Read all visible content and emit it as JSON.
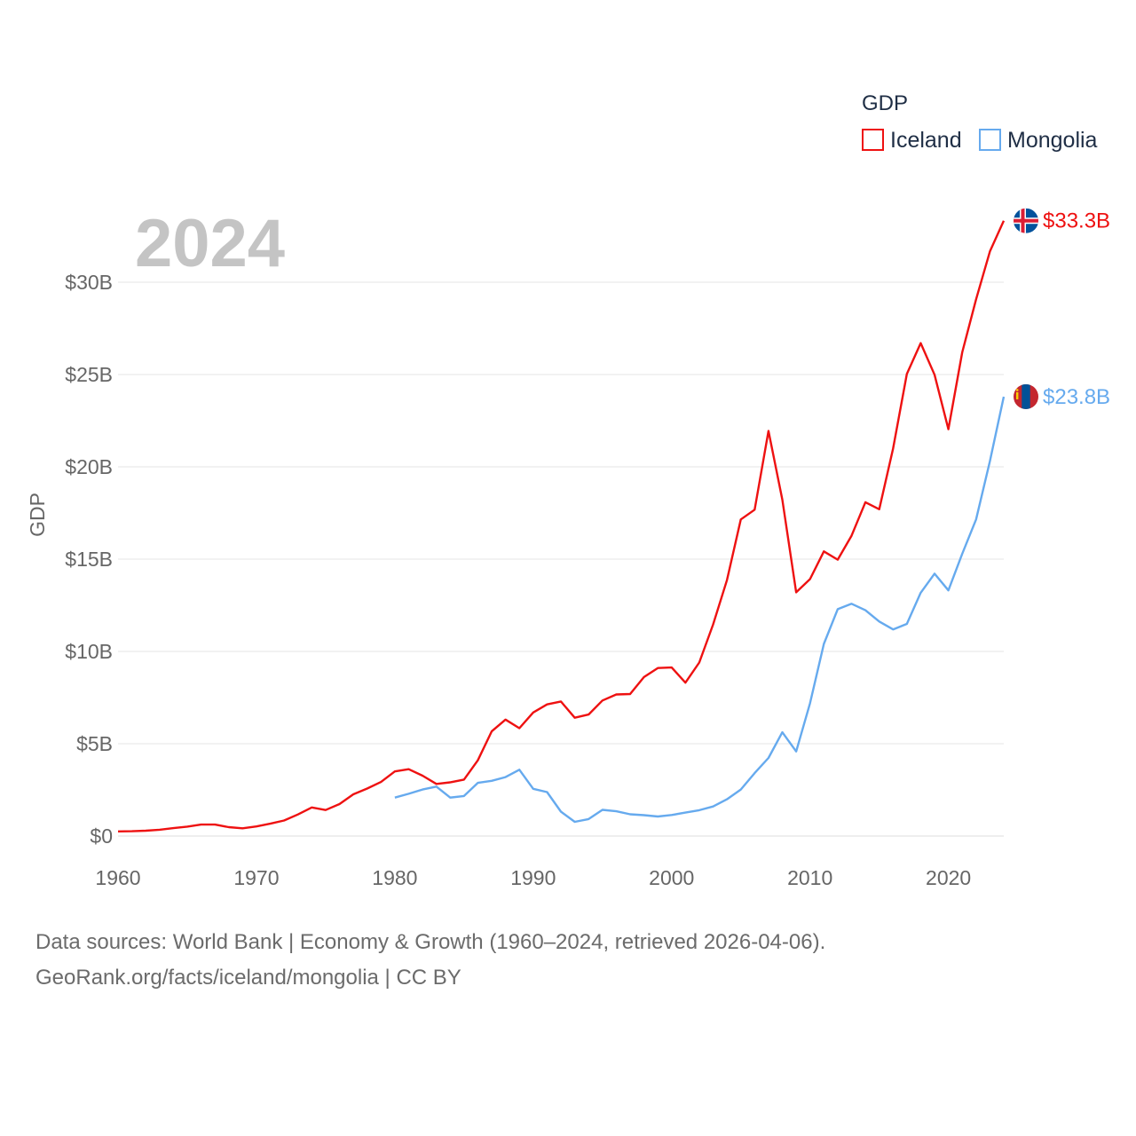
{
  "colors": {
    "iceland": "#ee1111",
    "mongolia": "#66aaee",
    "grid": "#e6e6e6",
    "axis": "#666666"
  },
  "year_label": "2024",
  "source_lines": [
    "Data sources: World Bank | Economy & Growth (1960–2024, retrieved 2026-04-06).",
    "GeoRank.org/facts/iceland/mongolia | CC BY"
  ],
  "chart_data": {
    "type": "line",
    "title": "GDP",
    "ylabel": "GDP",
    "xlabel": "",
    "xlim": [
      1960,
      2024
    ],
    "ylim": [
      0,
      30
    ],
    "y_unit": "billion USD",
    "x_ticks": [
      1960,
      1970,
      1980,
      1990,
      2000,
      2010,
      2020
    ],
    "y_ticks": [
      0,
      5,
      10,
      15,
      20,
      25,
      30
    ],
    "y_tick_labels": [
      "$0",
      "$5B",
      "$10B",
      "$15B",
      "$20B",
      "$25B",
      "$30B"
    ],
    "legend": {
      "title": "GDP",
      "position": "top-right",
      "entries": [
        "Iceland",
        "Mongolia"
      ]
    },
    "series": [
      {
        "name": "Iceland",
        "end_label": "$33.3B",
        "x_start": 1960,
        "values": [
          0.25,
          0.26,
          0.29,
          0.34,
          0.43,
          0.51,
          0.62,
          0.62,
          0.48,
          0.42,
          0.52,
          0.67,
          0.84,
          1.17,
          1.55,
          1.41,
          1.73,
          2.26,
          2.57,
          2.93,
          3.5,
          3.62,
          3.27,
          2.82,
          2.91,
          3.06,
          4.1,
          5.67,
          6.31,
          5.84,
          6.69,
          7.13,
          7.29,
          6.41,
          6.58,
          7.34,
          7.67,
          7.69,
          8.61,
          9.1,
          9.13,
          8.31,
          9.4,
          11.46,
          13.86,
          17.15,
          17.68,
          21.94,
          18.22,
          13.2,
          13.92,
          15.42,
          14.97,
          16.27,
          18.08,
          17.7,
          20.99,
          25.03,
          26.7,
          24.99,
          22.04,
          26.2,
          29.07,
          31.67,
          33.33
        ]
      },
      {
        "name": "Mongolia",
        "end_label": "$23.8B",
        "x_start": 1980,
        "values": [
          2.08,
          2.29,
          2.52,
          2.68,
          2.08,
          2.17,
          2.88,
          2.99,
          3.19,
          3.59,
          2.56,
          2.38,
          1.32,
          0.77,
          0.92,
          1.42,
          1.34,
          1.18,
          1.13,
          1.06,
          1.14,
          1.27,
          1.4,
          1.6,
          1.99,
          2.52,
          3.41,
          4.23,
          5.62,
          4.58,
          7.19,
          10.41,
          12.29,
          12.58,
          12.23,
          11.62,
          11.19,
          11.49,
          13.18,
          14.21,
          13.31,
          15.29,
          17.15,
          20.31,
          23.8
        ]
      }
    ]
  }
}
